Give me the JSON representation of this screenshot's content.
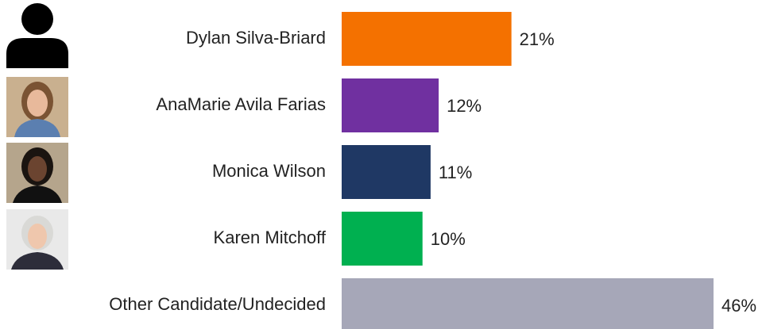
{
  "chart_data": {
    "type": "bar",
    "orientation": "horizontal",
    "categories": [
      "Dylan Silva-Briard",
      "AnaMarie Avila Farias",
      "Monica Wilson",
      "Karen Mitchoff",
      "Other Candidate/Undecided"
    ],
    "values": [
      21,
      12,
      11,
      10,
      46
    ],
    "value_labels": [
      "21%",
      "12%",
      "11%",
      "10%",
      "46%"
    ],
    "colors": [
      "#f47100",
      "#7030a0",
      "#1f3864",
      "#00b050",
      "#a6a7b8"
    ]
  }
}
